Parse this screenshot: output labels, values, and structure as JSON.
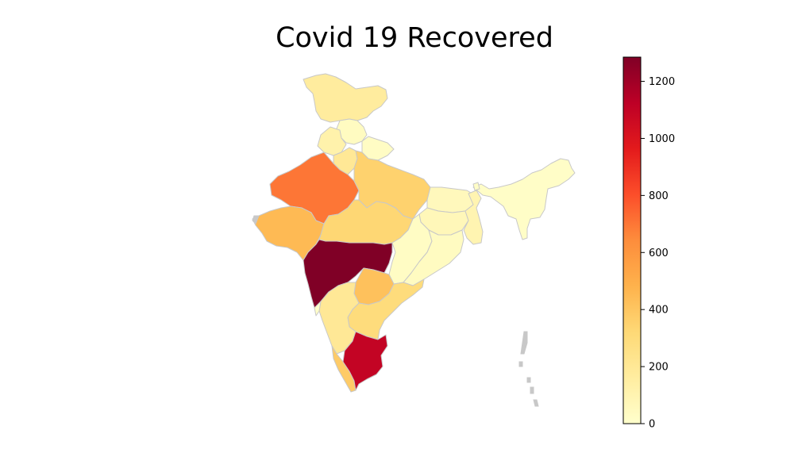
{
  "title": "Covid 19 Recovered",
  "colorbar": {
    "colormap": "YlOrRd",
    "min": 0,
    "max": 1285,
    "ticks": [
      "0",
      "200",
      "400",
      "600",
      "800",
      "1000",
      "1200"
    ],
    "tick_values": [
      0,
      200,
      400,
      600,
      800,
      1000,
      1200
    ],
    "stops": [
      "#ffffcc",
      "#ffeda0",
      "#fed976",
      "#feb24c",
      "#fd8d3c",
      "#fc4e2a",
      "#e31a1c",
      "#bd0026",
      "#800026"
    ]
  },
  "chart_data": {
    "type": "choropleth",
    "title": "Covid 19 Recovered",
    "regions": [
      {
        "name": "Jammu and Kashmir",
        "value": 170
      },
      {
        "name": "Himachal Pradesh",
        "value": 40
      },
      {
        "name": "Punjab",
        "value": 120
      },
      {
        "name": "Haryana",
        "value": 200
      },
      {
        "name": "Uttarakhand",
        "value": 30
      },
      {
        "name": "Rajasthan",
        "value": 700
      },
      {
        "name": "Uttar Pradesh",
        "value": 350
      },
      {
        "name": "Bihar",
        "value": 60
      },
      {
        "name": "Gujarat",
        "value": 450
      },
      {
        "name": "Madhya Pradesh",
        "value": 330
      },
      {
        "name": "Chhattisgarh",
        "value": 30
      },
      {
        "name": "Jharkhand",
        "value": 70
      },
      {
        "name": "West Bengal",
        "value": 100
      },
      {
        "name": "Odisha",
        "value": 40
      },
      {
        "name": "Northeast states",
        "value": 20
      },
      {
        "name": "Maharashtra",
        "value": 1285
      },
      {
        "name": "Telangana",
        "value": 420
      },
      {
        "name": "Andhra Pradesh",
        "value": 300
      },
      {
        "name": "Karnataka",
        "value": 200
      },
      {
        "name": "Goa",
        "value": 10
      },
      {
        "name": "Kerala",
        "value": 380
      },
      {
        "name": "Tamil Nadu",
        "value": 1100
      },
      {
        "name": "Andaman and Nicobar",
        "value": 10
      }
    ]
  }
}
